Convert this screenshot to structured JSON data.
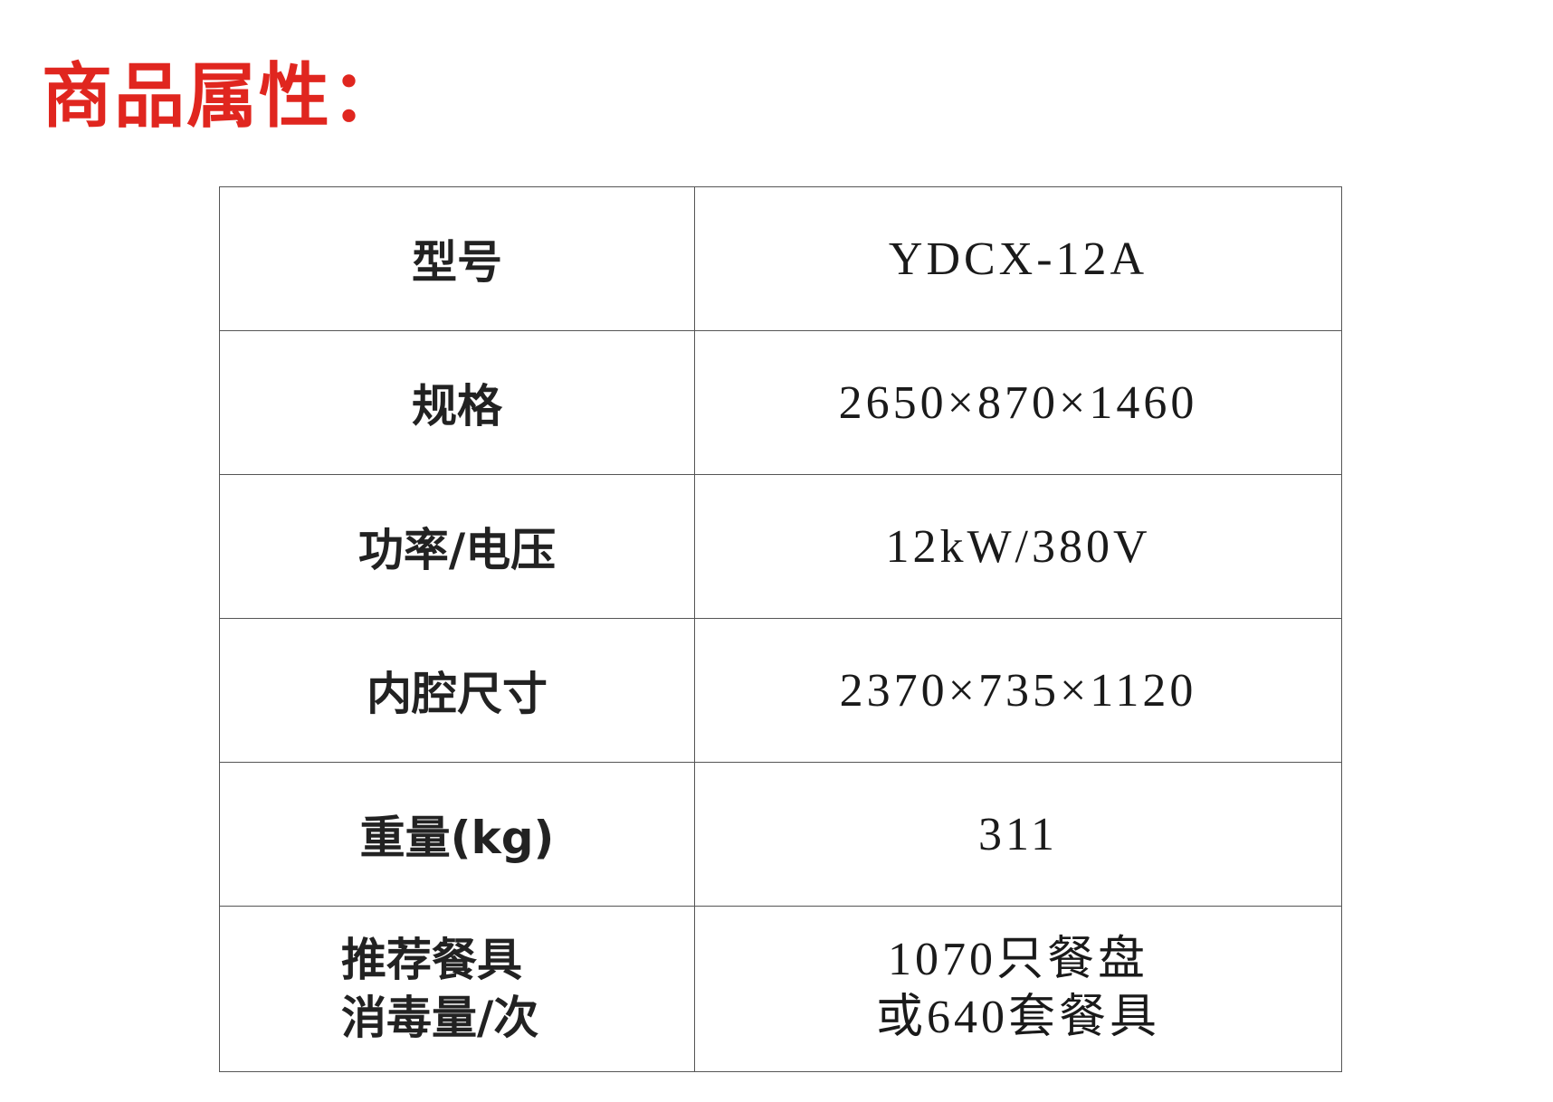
{
  "title": "商品属性：",
  "colors": {
    "title": "#e0261f",
    "border": "#555555"
  },
  "rows": [
    {
      "key": "型号",
      "value": "YDCX-12A"
    },
    {
      "key": "规格",
      "value": "2650×870×1460"
    },
    {
      "key": "功率/电压",
      "value": "12kW/380V"
    },
    {
      "key": "内腔尺寸",
      "value": "2370×735×1120"
    },
    {
      "key": "重量(kg)",
      "value": "311"
    },
    {
      "key_lines": [
        "推荐餐具",
        "消毒量/次"
      ],
      "value_lines": [
        "1070只餐盘",
        "或640套餐具"
      ]
    }
  ]
}
